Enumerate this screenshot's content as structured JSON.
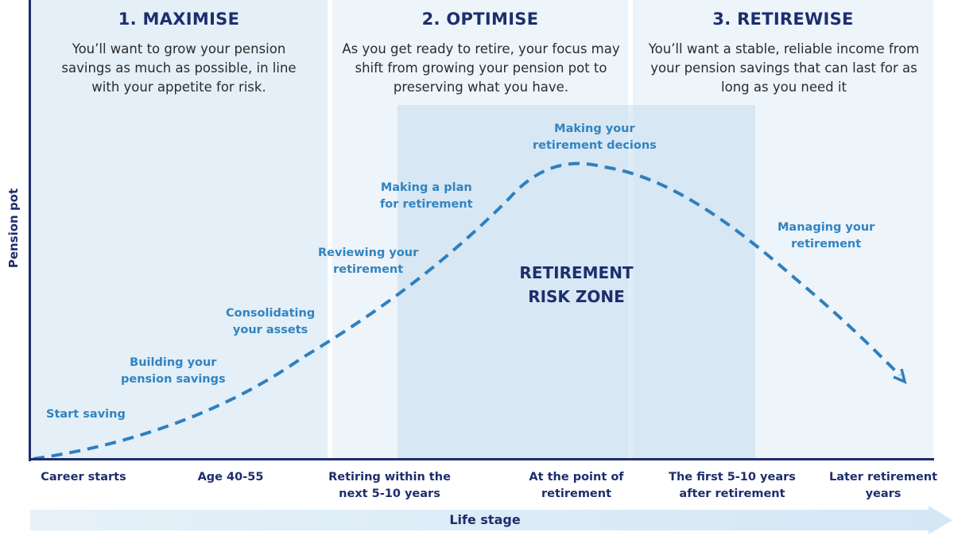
{
  "phases": [
    {
      "title": "1. MAXIMISE",
      "desc": "You’ll want to grow your pension savings as much as possible, in line with your appetite for risk."
    },
    {
      "title": "2. OPTIMISE",
      "desc": "As you get ready to retire, your focus may shift from growing your pension pot to preserving what you have."
    },
    {
      "title": "3. RETIREWISE",
      "desc": "You’ll want a stable, reliable income from your pension savings that can last for as long as you need it"
    }
  ],
  "risk_zone": {
    "line1": "RETIREMENT",
    "line2": "RISK ZONE"
  },
  "steps": [
    {
      "line1": "Start saving",
      "line2": ""
    },
    {
      "line1": "Building your",
      "line2": "pension savings"
    },
    {
      "line1": "Consolidating",
      "line2": "your assets"
    },
    {
      "line1": "Reviewing your",
      "line2": "retirement"
    },
    {
      "line1": "Making a plan",
      "line2": "for retirement"
    },
    {
      "line1": "Making your",
      "line2": "retirement decions"
    },
    {
      "line1": "Managing your",
      "line2": "retirement"
    }
  ],
  "axes": {
    "ylabel": "Pension pot",
    "xlabel": "Life stage"
  },
  "stages": [
    {
      "line1": "Career starts",
      "line2": ""
    },
    {
      "line1": "Age 40-55",
      "line2": ""
    },
    {
      "line1": "Retiring within the",
      "line2": "next 5-10 years"
    },
    {
      "line1": "At the point of",
      "line2": "retirement"
    },
    {
      "line1": "The first 5-10 years",
      "line2": "after retirement"
    },
    {
      "line1": "Later retirement",
      "line2": "years"
    }
  ],
  "colors": {
    "navy": "#1d2e6e",
    "curve": "#2f7fbe",
    "panel": "#e4eff8",
    "risk_zone": "#bdd6ea"
  }
}
